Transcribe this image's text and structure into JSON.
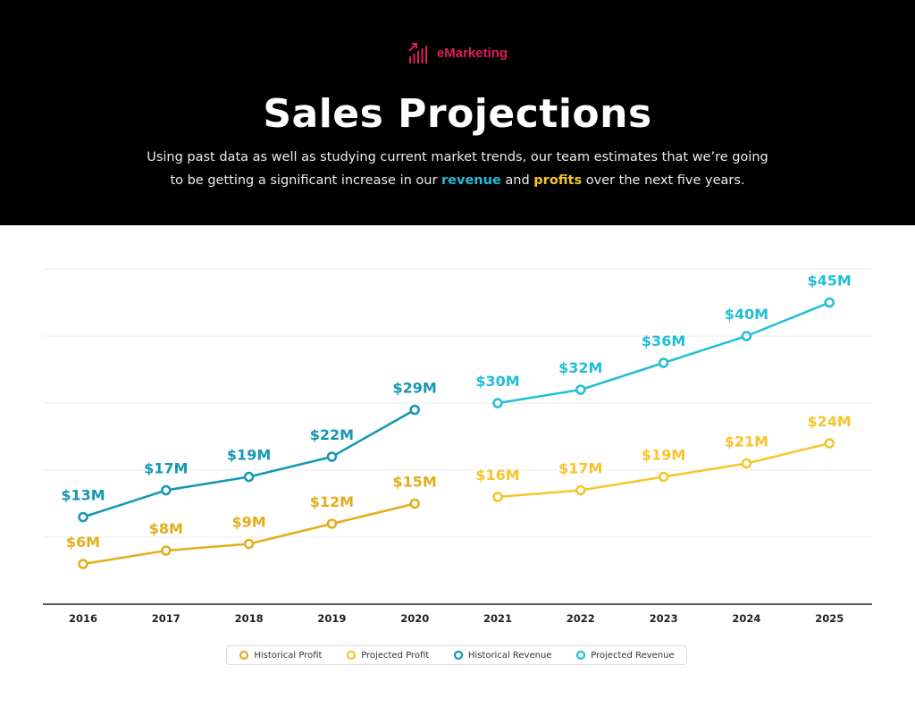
{
  "header": {
    "brand": "eMarketing",
    "title": "Sales Projections",
    "subtitle_line1": "Using past data as well as studying current market trends, our team estimates that we’re going",
    "subtitle_pre": "to be getting a significant increase in our ",
    "subtitle_revenue": "revenue",
    "subtitle_mid": " and ",
    "subtitle_profits": "profits",
    "subtitle_post": " over the next five years."
  },
  "colors": {
    "background_header": "#000000",
    "brand": "#e0195f",
    "historical_profit": "#e3ad1b",
    "projected_profit": "#f7c52b",
    "historical_revenue": "#1697b3",
    "projected_revenue": "#22bdd9",
    "gridline": "#ececec",
    "axis": "#222222"
  },
  "chart_data": {
    "type": "line",
    "categories": [
      "2016",
      "2017",
      "2018",
      "2019",
      "2020",
      "2021",
      "2022",
      "2023",
      "2024",
      "2025"
    ],
    "ylim": [
      0,
      50
    ],
    "grid": true,
    "legend_position": "bottom-center",
    "unit_prefix": "$",
    "unit_suffix": "M",
    "series": [
      {
        "name": "Historical Profit",
        "key": "historical_profit",
        "x": [
          "2016",
          "2017",
          "2018",
          "2019",
          "2020"
        ],
        "values": [
          6,
          8,
          9,
          12,
          15
        ]
      },
      {
        "name": "Projected Profit",
        "key": "projected_profit",
        "x": [
          "2021",
          "2022",
          "2023",
          "2024",
          "2025"
        ],
        "values": [
          16,
          17,
          19,
          21,
          24
        ]
      },
      {
        "name": "Historical Revenue",
        "key": "historical_revenue",
        "x": [
          "2016",
          "2017",
          "2018",
          "2019",
          "2020"
        ],
        "values": [
          13,
          17,
          19,
          22,
          29
        ]
      },
      {
        "name": "Projected Revenue",
        "key": "projected_revenue",
        "x": [
          "2021",
          "2022",
          "2023",
          "2024",
          "2025"
        ],
        "values": [
          30,
          32,
          36,
          40,
          45
        ]
      }
    ]
  }
}
